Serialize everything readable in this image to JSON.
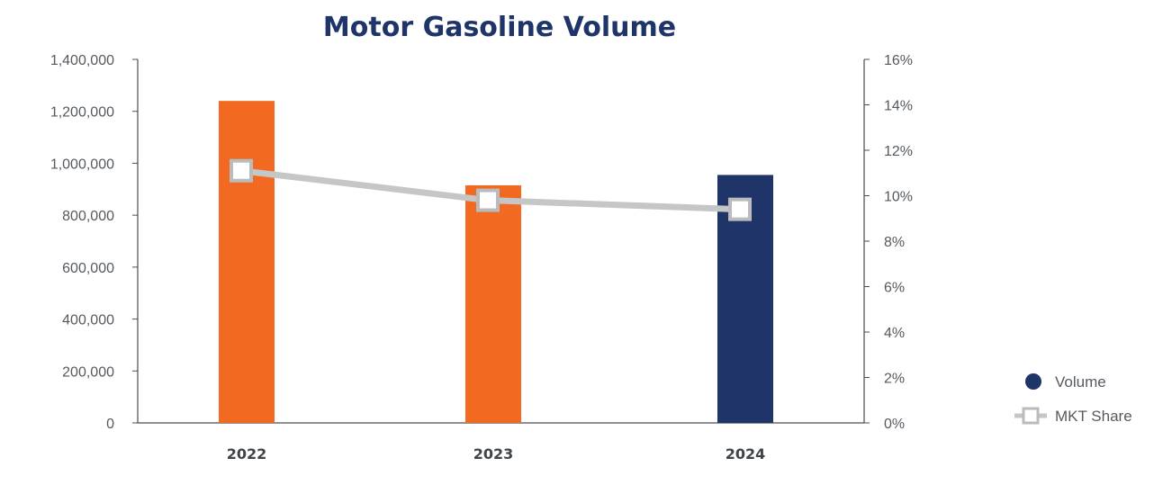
{
  "chart_data": {
    "type": "bar",
    "title": "Motor Gasoline Volume",
    "categories": [
      "2022",
      "2023",
      "2024"
    ],
    "series": [
      {
        "name": "Volume",
        "type": "bar",
        "axis": "left",
        "values": [
          1240000,
          915000,
          955000
        ]
      },
      {
        "name": "MKT Share",
        "type": "line",
        "axis": "right",
        "values": [
          0.111,
          0.098,
          0.094
        ]
      }
    ],
    "left_axis": {
      "ylim": [
        0,
        1400000
      ],
      "ticks": [
        0,
        200000,
        400000,
        600000,
        800000,
        1000000,
        1200000,
        1400000
      ],
      "tick_labels": [
        "0",
        "200,000",
        "400,000",
        "600,000",
        "800,000",
        "1,000,000",
        "1,200,000",
        "1,400,000"
      ]
    },
    "right_axis": {
      "ylim": [
        0,
        0.16
      ],
      "ticks": [
        0,
        0.02,
        0.04,
        0.06,
        0.08,
        0.1,
        0.12,
        0.14,
        0.16
      ],
      "tick_labels": [
        "0%",
        "2%",
        "4%",
        "6%",
        "8%",
        "10%",
        "12%",
        "14%",
        "16%"
      ]
    },
    "grid": false,
    "legend": {
      "placement": "right",
      "entries": [
        "Volume",
        "MKT Share"
      ]
    },
    "colors": {
      "bar_default": "#f26a21",
      "bar_highlight": "#1f3468",
      "highlight_category": "2024",
      "line": "#c4c6c8",
      "marker_fill": "#ffffff",
      "marker_stroke": "#b9bbbd",
      "title": "#1f3468",
      "category_label": "#3f4448",
      "category_label_highlight": "#2a6aa8",
      "axis": "#4a4e52",
      "legend_volume": "#1f3468"
    }
  }
}
